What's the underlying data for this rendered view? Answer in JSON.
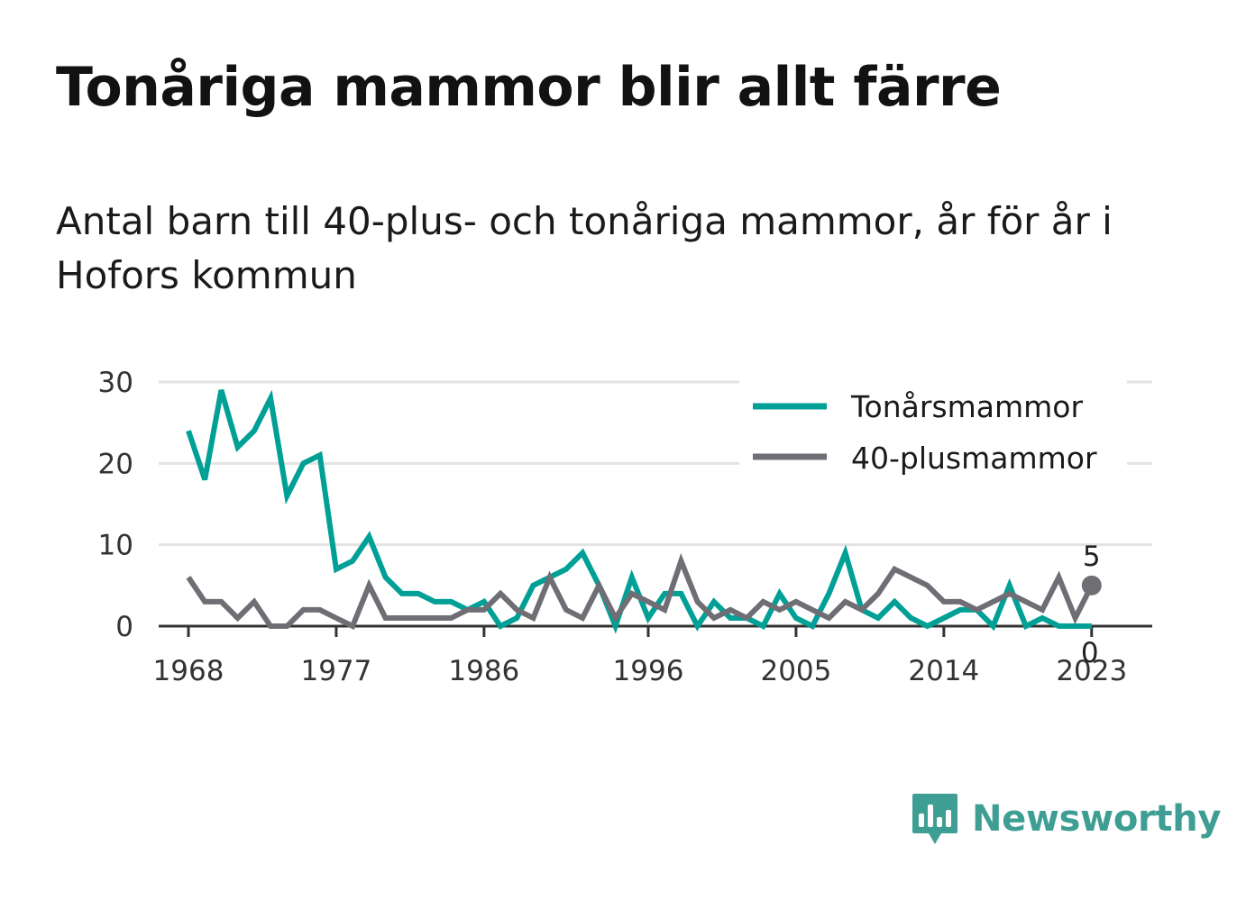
{
  "title": "Tonåriga mammor blir allt färre",
  "subtitle": "Antal barn till 40-plus- och tonåriga mammor, år för år i Hofors kommun",
  "brand": {
    "name": "Newsworthy",
    "logo_icon": "newsworthy-bar-chart-logo-icon"
  },
  "colors": {
    "teen": "#00a096",
    "forty": "#6f6e74",
    "grid": "#e3e3e3",
    "axis": "#333333",
    "brand": "#3f9e93"
  },
  "chart_data": {
    "type": "line",
    "title": "Tonåriga mammor blir allt färre",
    "subtitle": "Antal barn till 40-plus- och tonåriga mammor, år för år i Hofors kommun",
    "xlabel": "",
    "ylabel": "",
    "xlim": [
      1968,
      2024
    ],
    "ylim": [
      0,
      30
    ],
    "x_ticks": [
      1968,
      1977,
      1986,
      1996,
      2005,
      2014,
      2023
    ],
    "y_ticks": [
      0,
      10,
      20,
      30
    ],
    "grid": "horizontal",
    "legend_position": "top-right",
    "x": [
      1968,
      1969,
      1970,
      1971,
      1972,
      1973,
      1974,
      1975,
      1976,
      1977,
      1978,
      1979,
      1980,
      1981,
      1982,
      1983,
      1984,
      1985,
      1986,
      1987,
      1988,
      1989,
      1990,
      1991,
      1992,
      1993,
      1994,
      1995,
      1996,
      1997,
      1998,
      1999,
      2000,
      2001,
      2002,
      2003,
      2004,
      2005,
      2006,
      2007,
      2008,
      2009,
      2010,
      2011,
      2012,
      2013,
      2014,
      2015,
      2016,
      2017,
      2018,
      2019,
      2020,
      2021,
      2022,
      2023
    ],
    "series": [
      {
        "name": "Tonårsmammor",
        "values": [
          24,
          18,
          29,
          22,
          24,
          28,
          16,
          20,
          21,
          7,
          8,
          11,
          6,
          4,
          4,
          3,
          3,
          2,
          3,
          0,
          1,
          5,
          6,
          7,
          9,
          5,
          0,
          6,
          1,
          4,
          4,
          0,
          3,
          1,
          1,
          0,
          4,
          1,
          0,
          4,
          9,
          2,
          1,
          3,
          1,
          0,
          1,
          2,
          2,
          0,
          5,
          0,
          1,
          0,
          0,
          0
        ],
        "end_label": "0"
      },
      {
        "name": "40-plusmammor",
        "values": [
          6,
          3,
          3,
          1,
          3,
          0,
          0,
          2,
          2,
          1,
          0,
          5,
          1,
          1,
          1,
          1,
          1,
          2,
          2,
          4,
          2,
          1,
          6,
          2,
          1,
          5,
          1,
          4,
          3,
          2,
          8,
          3,
          1,
          2,
          1,
          3,
          2,
          3,
          2,
          1,
          3,
          2,
          4,
          7,
          6,
          5,
          3,
          3,
          2,
          3,
          4,
          3,
          2,
          6,
          1,
          5
        ],
        "end_label": "5"
      }
    ]
  }
}
